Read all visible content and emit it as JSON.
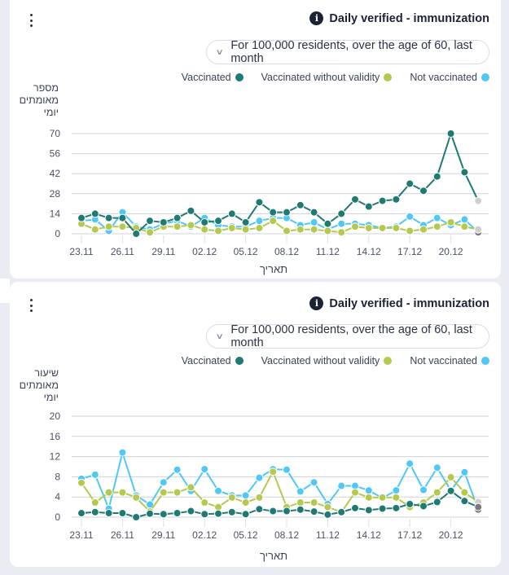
{
  "colors": {
    "vaccinated": "#1f7a74",
    "vaccinated_without_validity": "#b5c94f",
    "not_vaccinated": "#4fc8f5",
    "grid": "#cfd3da",
    "partial_light": "#cfcfcf",
    "partial_dark": "#7a7a7a"
  },
  "cards": [
    {
      "title": "Daily verified - immunization",
      "selector": "For 100,000 residents, over the age of 60, last month",
      "legend": [
        "Vaccinated",
        "Vaccinated without validity",
        "Not vaccinated"
      ],
      "ylabel_lines": [
        "מספר",
        "מאומתים",
        "יומי"
      ],
      "xlabel": "תאריך"
    },
    {
      "title": "Daily verified - immunization",
      "selector": "For 100,000 residents, over the age of 60, last month",
      "legend": [
        "Vaccinated",
        "Vaccinated without validity",
        "Not vaccinated"
      ],
      "ylabel_lines": [
        "שיעור",
        "מאומתים",
        "יומי"
      ],
      "xlabel": "תאריך"
    }
  ],
  "chart_data": [
    {
      "type": "line",
      "title": "Daily verified - immunization",
      "subtitle": "For 100,000 residents, over the age of 60, last month",
      "xlabel": "תאריך",
      "ylabel": "מספר מאומתים יומי",
      "ylim": [
        0,
        70
      ],
      "yticks": [
        0,
        14,
        28,
        42,
        56,
        70
      ],
      "grid": true,
      "legend_position": "top-right",
      "x": [
        "23.11",
        "24.11",
        "25.11",
        "26.11",
        "27.11",
        "28.11",
        "29.11",
        "30.11",
        "01.12",
        "02.12",
        "03.12",
        "04.12",
        "05.12",
        "06.12",
        "07.12",
        "08.12",
        "09.12",
        "10.12",
        "11.12",
        "12.12",
        "13.12",
        "14.12",
        "15.12",
        "16.12",
        "17.12",
        "18.12",
        "19.12",
        "20.12",
        "21.12",
        "22.12"
      ],
      "xtick_labels": [
        "23.11",
        "26.11",
        "29.11",
        "02.12",
        "05.12",
        "08.12",
        "11.12",
        "14.12",
        "17.12",
        "20.12"
      ],
      "series": [
        {
          "name": "Vaccinated",
          "values": [
            11,
            14,
            11,
            11,
            0,
            9,
            8,
            11,
            16,
            8,
            9,
            14,
            8,
            22,
            15,
            15,
            20,
            15,
            7,
            14,
            24,
            19,
            23,
            24,
            35,
            30,
            40,
            70,
            43,
            23
          ],
          "last_point_partial": true
        },
        {
          "name": "Vaccinated without validity",
          "values": [
            7,
            3,
            5,
            5,
            4,
            1,
            5,
            5,
            6,
            3,
            2,
            4,
            3,
            4,
            9,
            2,
            3,
            3,
            2,
            1,
            5,
            4,
            4,
            4,
            2,
            3,
            5,
            8,
            5,
            3
          ],
          "last_point_partial": true
        },
        {
          "name": "Not vaccinated",
          "values": [
            9,
            10,
            2,
            15,
            5,
            3,
            7,
            9,
            5,
            11,
            6,
            5,
            5,
            9,
            11,
            11,
            6,
            8,
            3,
            7,
            7,
            6,
            4,
            5,
            12,
            6,
            11,
            6,
            10,
            1
          ],
          "last_point_partial": true
        }
      ]
    },
    {
      "type": "line",
      "title": "Daily verified - immunization",
      "subtitle": "For 100,000 residents, over the age of 60, last month",
      "xlabel": "תאריך",
      "ylabel": "שיעור מאומתים יומי",
      "ylim": [
        0,
        20
      ],
      "yticks": [
        0,
        4,
        8,
        12,
        16,
        20
      ],
      "grid": true,
      "legend_position": "top-right",
      "x": [
        "23.11",
        "24.11",
        "25.11",
        "26.11",
        "27.11",
        "28.11",
        "29.11",
        "30.11",
        "01.12",
        "02.12",
        "03.12",
        "04.12",
        "05.12",
        "06.12",
        "07.12",
        "08.12",
        "09.12",
        "10.12",
        "11.12",
        "12.12",
        "13.12",
        "14.12",
        "15.12",
        "16.12",
        "17.12",
        "18.12",
        "19.12",
        "20.12",
        "21.12",
        "22.12"
      ],
      "xtick_labels": [
        "23.11",
        "26.11",
        "29.11",
        "02.12",
        "05.12",
        "08.12",
        "11.12",
        "14.12",
        "17.12",
        "20.12"
      ],
      "series": [
        {
          "name": "Vaccinated",
          "values": [
            0.8,
            1.0,
            0.8,
            0.8,
            0.0,
            0.7,
            0.6,
            0.8,
            1.2,
            0.6,
            0.7,
            1.0,
            0.6,
            1.6,
            1.2,
            1.2,
            1.5,
            1.1,
            0.5,
            1.0,
            1.8,
            1.4,
            1.7,
            1.8,
            2.6,
            2.2,
            3.0,
            5.2,
            3.2,
            2.0
          ],
          "last_point_partial": true
        },
        {
          "name": "Vaccinated without validity",
          "values": [
            6.8,
            2.9,
            4.9,
            4.9,
            3.9,
            1.1,
            4.9,
            4.9,
            5.9,
            2.9,
            2.0,
            3.9,
            2.9,
            3.9,
            9.0,
            2.0,
            2.9,
            2.9,
            2.0,
            1.0,
            4.9,
            3.9,
            3.9,
            3.9,
            2.0,
            2.9,
            4.9,
            7.9,
            4.9,
            3.0
          ],
          "last_point_partial": true
        },
        {
          "name": "Not vaccinated",
          "values": [
            7.6,
            8.4,
            1.7,
            12.8,
            4.3,
            2.5,
            6.9,
            9.4,
            5.2,
            9.5,
            5.2,
            4.3,
            4.3,
            7.8,
            9.5,
            9.4,
            5.1,
            6.9,
            2.6,
            6.2,
            6.2,
            5.3,
            3.8,
            5.3,
            10.6,
            5.4,
            9.8,
            5.3,
            8.9,
            1.5
          ],
          "last_point_partial": true
        }
      ]
    }
  ]
}
